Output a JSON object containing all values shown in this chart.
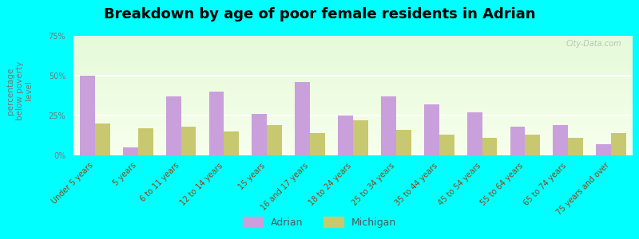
{
  "title": "Breakdown by age of poor female residents in Adrian",
  "ylabel": "percentage\nbelow poverty\nlevel",
  "categories": [
    "Under 5 years",
    "5 years",
    "6 to 11 years",
    "12 to 14 years",
    "15 years",
    "16 and 17 years",
    "18 to 24 years",
    "25 to 34 years",
    "35 to 44 years",
    "45 to 54 years",
    "55 to 64 years",
    "65 to 74 years",
    "75 years and over"
  ],
  "adrian_values": [
    50,
    5,
    37,
    40,
    26,
    46,
    25,
    37,
    32,
    27,
    18,
    19,
    7
  ],
  "michigan_values": [
    20,
    17,
    18,
    15,
    19,
    14,
    22,
    16,
    13,
    11,
    13,
    11,
    14
  ],
  "adrian_color": "#c9a0dc",
  "michigan_color": "#c8c870",
  "background_color": "#00ffff",
  "ylim": [
    0,
    75
  ],
  "yticks": [
    0,
    25,
    50,
    75
  ],
  "ytick_labels": [
    "0%",
    "25%",
    "50%",
    "75%"
  ],
  "bar_width": 0.35,
  "legend_adrian": "Adrian",
  "legend_michigan": "Michigan",
  "title_fontsize": 13,
  "axis_label_fontsize": 7.5,
  "tick_fontsize": 7,
  "watermark": "City-Data.com"
}
